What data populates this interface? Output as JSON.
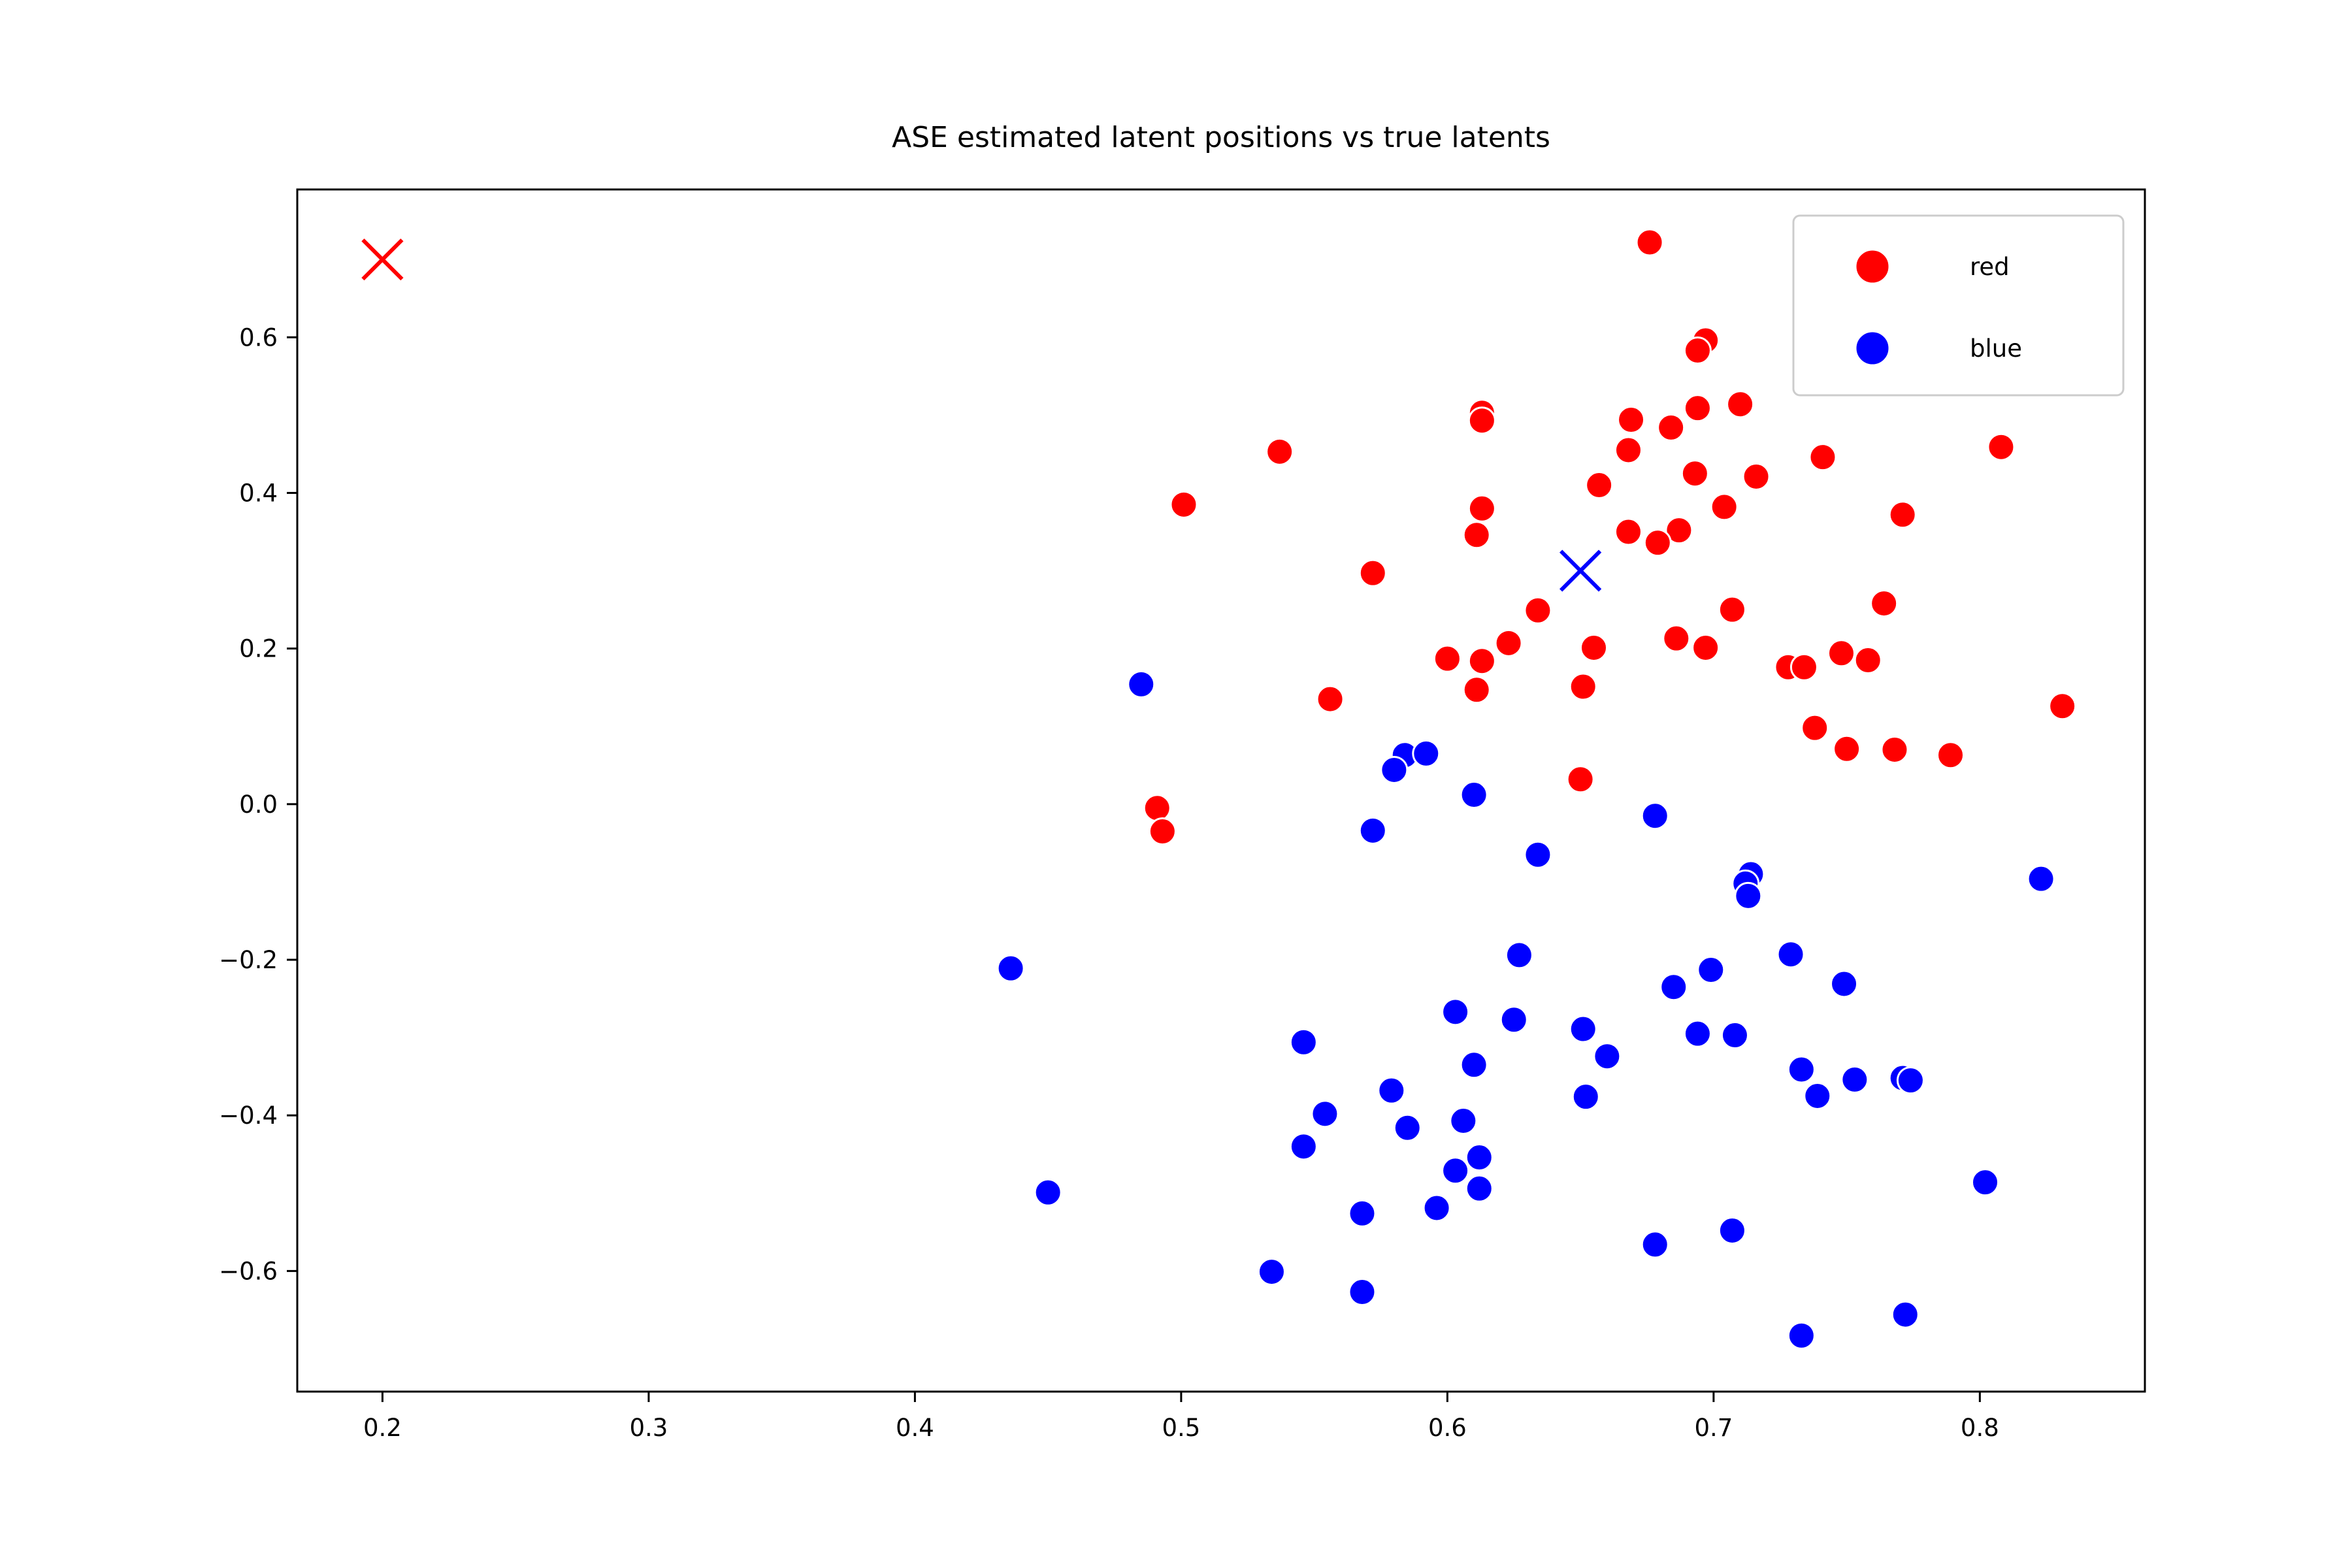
{
  "chart_data": {
    "type": "scatter",
    "title": "ASE estimated latent positions vs true latents",
    "xlabel": "",
    "ylabel": "",
    "xlim": [
      0.168,
      0.862
    ],
    "ylim": [
      -0.755,
      0.79
    ],
    "x_ticks": [
      0.2,
      0.3,
      0.4,
      0.5,
      0.6,
      0.7,
      0.8
    ],
    "x_tick_labels": [
      "0.2",
      "0.3",
      "0.4",
      "0.5",
      "0.6",
      "0.7",
      "0.8"
    ],
    "y_ticks": [
      -0.6,
      -0.4,
      -0.2,
      0.0,
      0.2,
      0.4,
      0.6
    ],
    "y_tick_labels": [
      "−0.6",
      "−0.4",
      "−0.2",
      "0.0",
      "0.2",
      "0.4",
      "0.6"
    ],
    "grid": false,
    "legend_position": "top-right",
    "series": [
      {
        "name": "red",
        "color": "#ff0000",
        "x": [
          0.676,
          0.697,
          0.694,
          0.613,
          0.613,
          0.669,
          0.684,
          0.694,
          0.71,
          0.741,
          0.808,
          0.537,
          0.668,
          0.693,
          0.716,
          0.657,
          0.501,
          0.613,
          0.704,
          0.771,
          0.611,
          0.668,
          0.687,
          0.679,
          0.572,
          0.764,
          0.634,
          0.707,
          0.623,
          0.686,
          0.697,
          0.655,
          0.748,
          0.6,
          0.613,
          0.728,
          0.734,
          0.758,
          0.611,
          0.651,
          0.556,
          0.831,
          0.738,
          0.75,
          0.768,
          0.789,
          0.65,
          0.491,
          0.493
        ],
        "y": [
          0.722,
          0.596,
          0.583,
          0.503,
          0.493,
          0.494,
          0.484,
          0.509,
          0.514,
          0.446,
          0.459,
          0.453,
          0.455,
          0.425,
          0.421,
          0.41,
          0.385,
          0.38,
          0.382,
          0.372,
          0.346,
          0.35,
          0.352,
          0.336,
          0.297,
          0.258,
          0.249,
          0.25,
          0.207,
          0.213,
          0.201,
          0.201,
          0.194,
          0.187,
          0.184,
          0.176,
          0.176,
          0.185,
          0.147,
          0.151,
          0.135,
          0.126,
          0.098,
          0.071,
          0.07,
          0.063,
          0.032,
          -0.005,
          -0.035
        ]
      },
      {
        "name": "blue",
        "color": "#0000ff",
        "x": [
          0.485,
          0.584,
          0.592,
          0.58,
          0.61,
          0.572,
          0.678,
          0.634,
          0.714,
          0.712,
          0.713,
          0.823,
          0.436,
          0.627,
          0.729,
          0.699,
          0.685,
          0.749,
          0.603,
          0.625,
          0.651,
          0.694,
          0.708,
          0.546,
          0.66,
          0.61,
          0.733,
          0.771,
          0.774,
          0.753,
          0.579,
          0.652,
          0.739,
          0.554,
          0.606,
          0.585,
          0.546,
          0.612,
          0.603,
          0.45,
          0.612,
          0.568,
          0.596,
          0.802,
          0.534,
          0.707,
          0.678,
          0.568,
          0.772,
          0.733
        ],
        "y": [
          0.154,
          0.063,
          0.065,
          0.044,
          0.012,
          -0.034,
          -0.015,
          -0.065,
          -0.09,
          -0.102,
          -0.118,
          -0.096,
          -0.211,
          -0.194,
          -0.193,
          -0.213,
          -0.235,
          -0.231,
          -0.267,
          -0.277,
          -0.289,
          -0.295,
          -0.297,
          -0.306,
          -0.324,
          -0.335,
          -0.341,
          -0.352,
          -0.355,
          -0.354,
          -0.368,
          -0.376,
          -0.375,
          -0.398,
          -0.407,
          -0.416,
          -0.44,
          -0.454,
          -0.471,
          -0.499,
          -0.494,
          -0.526,
          -0.519,
          -0.486,
          -0.601,
          -0.548,
          -0.566,
          -0.627,
          -0.656,
          -0.683
        ]
      }
    ],
    "true_latents": [
      {
        "series": "red",
        "color": "#ff0000",
        "x": 0.2,
        "y": 0.7
      },
      {
        "series": "blue",
        "color": "#0000ff",
        "x": 0.65,
        "y": 0.3
      }
    ]
  }
}
